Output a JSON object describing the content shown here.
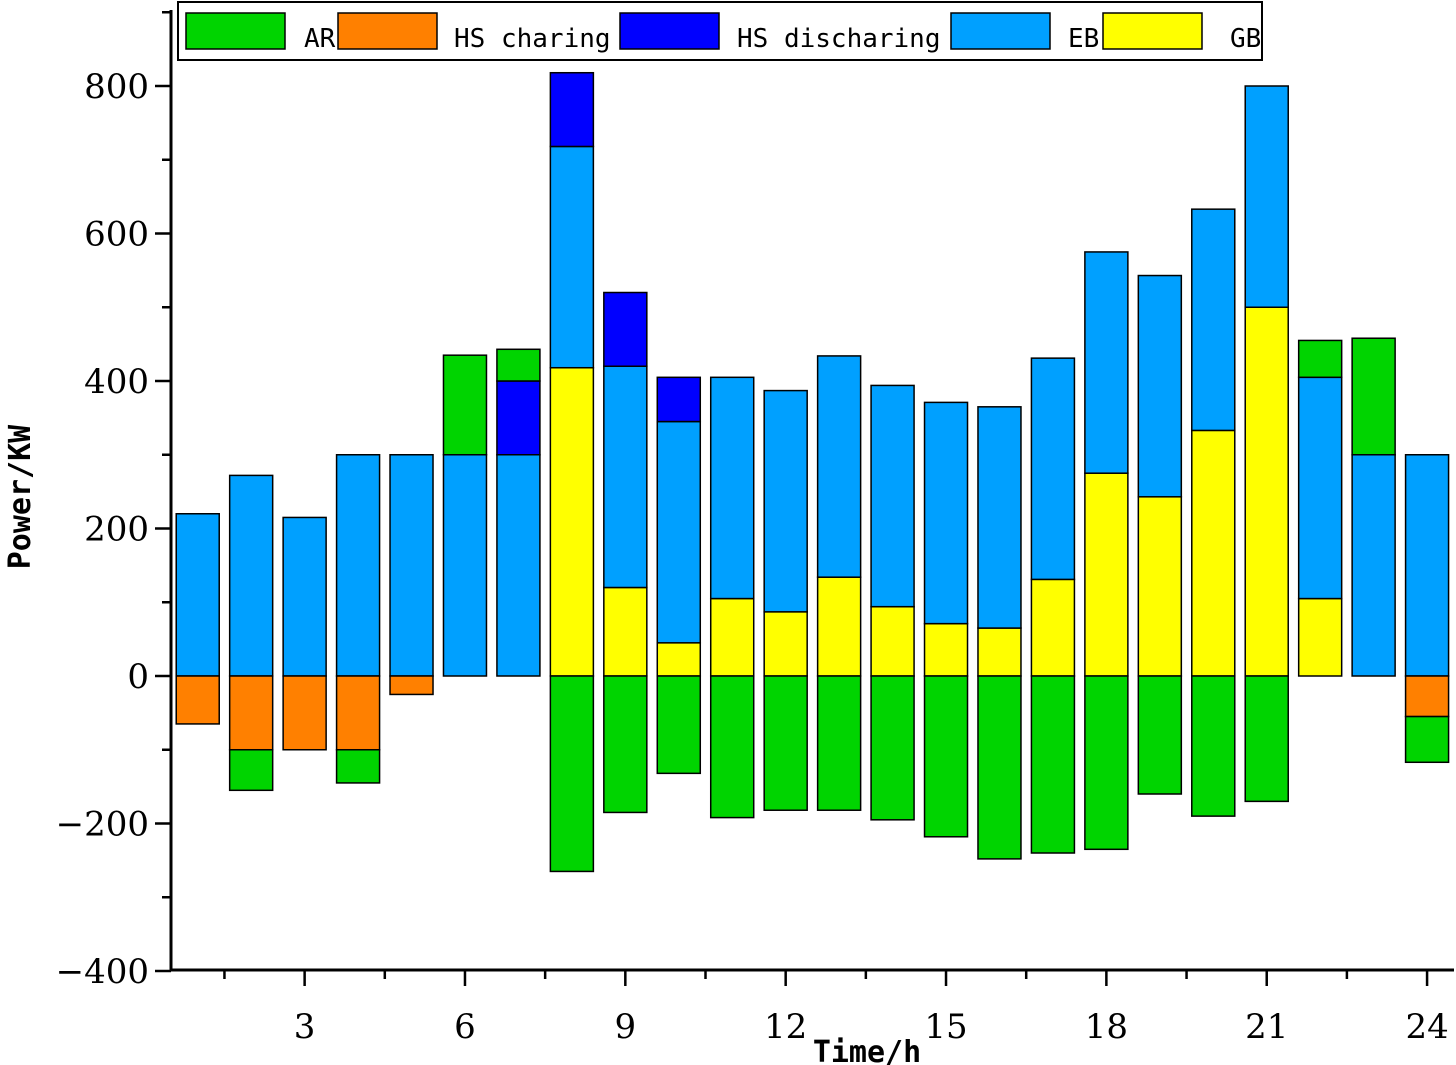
{
  "chart_data": {
    "type": "bar",
    "stacked": true,
    "title": "",
    "xlabel": "Time/h",
    "ylabel": "Power/KW",
    "ylim": [
      -400,
      900
    ],
    "yticks": [
      -400,
      -200,
      0,
      200,
      400,
      600,
      800
    ],
    "xlim": [
      0.5,
      24.5
    ],
    "xticks": [
      3,
      6,
      9,
      12,
      15,
      18,
      21,
      24
    ],
    "ytick_labels": [
      "−400",
      "−200",
      "0",
      "200",
      "400",
      "600",
      "800"
    ],
    "xtick_labels": [
      "3",
      "6",
      "9",
      "12",
      "15",
      "18",
      "21",
      "24"
    ],
    "hours": [
      1,
      2,
      3,
      4,
      5,
      6,
      7,
      8,
      9,
      10,
      11,
      12,
      13,
      14,
      15,
      16,
      17,
      18,
      19,
      20,
      21,
      22,
      23,
      24
    ],
    "series": [
      {
        "name": "AR",
        "color": "#00d400",
        "values": [
          0,
          -55,
          0,
          -45,
          0,
          135,
          43,
          -265,
          -185,
          -132,
          -192,
          -182,
          -182,
          -195,
          -218,
          -248,
          -240,
          -235,
          -160,
          -190,
          -170,
          50,
          158,
          -62
        ]
      },
      {
        "name": "HS charing",
        "color": "#ff8000",
        "values": [
          -65,
          -100,
          -100,
          -100,
          -25,
          0,
          0,
          0,
          0,
          0,
          0,
          0,
          0,
          0,
          0,
          0,
          0,
          0,
          0,
          0,
          0,
          0,
          0,
          -55
        ]
      },
      {
        "name": "HS discharing",
        "color": "#0000ff",
        "values": [
          0,
          0,
          0,
          0,
          0,
          0,
          100,
          100,
          100,
          60,
          0,
          0,
          0,
          0,
          0,
          0,
          0,
          0,
          0,
          0,
          0,
          0,
          0,
          0
        ]
      },
      {
        "name": "EB",
        "color": "#00a0ff",
        "values": [
          220,
          272,
          215,
          300,
          300,
          300,
          300,
          300,
          300,
          300,
          300,
          300,
          300,
          300,
          300,
          300,
          300,
          300,
          300,
          300,
          300,
          300,
          300,
          300
        ]
      },
      {
        "name": "GB",
        "color": "#ffff00",
        "values": [
          0,
          0,
          0,
          0,
          0,
          0,
          0,
          418,
          120,
          45,
          105,
          87,
          134,
          94,
          71,
          65,
          131,
          275,
          243,
          333,
          500,
          105,
          0,
          0
        ]
      }
    ],
    "positive_stack_order": [
      "GB",
      "EB",
      "HS discharing",
      "AR"
    ],
    "negative_stack_order": [
      "HS charing",
      "AR"
    ],
    "legend": [
      "AR",
      "HS charing",
      "HS discharing",
      "EB",
      "GB"
    ],
    "legend_position": "top"
  }
}
